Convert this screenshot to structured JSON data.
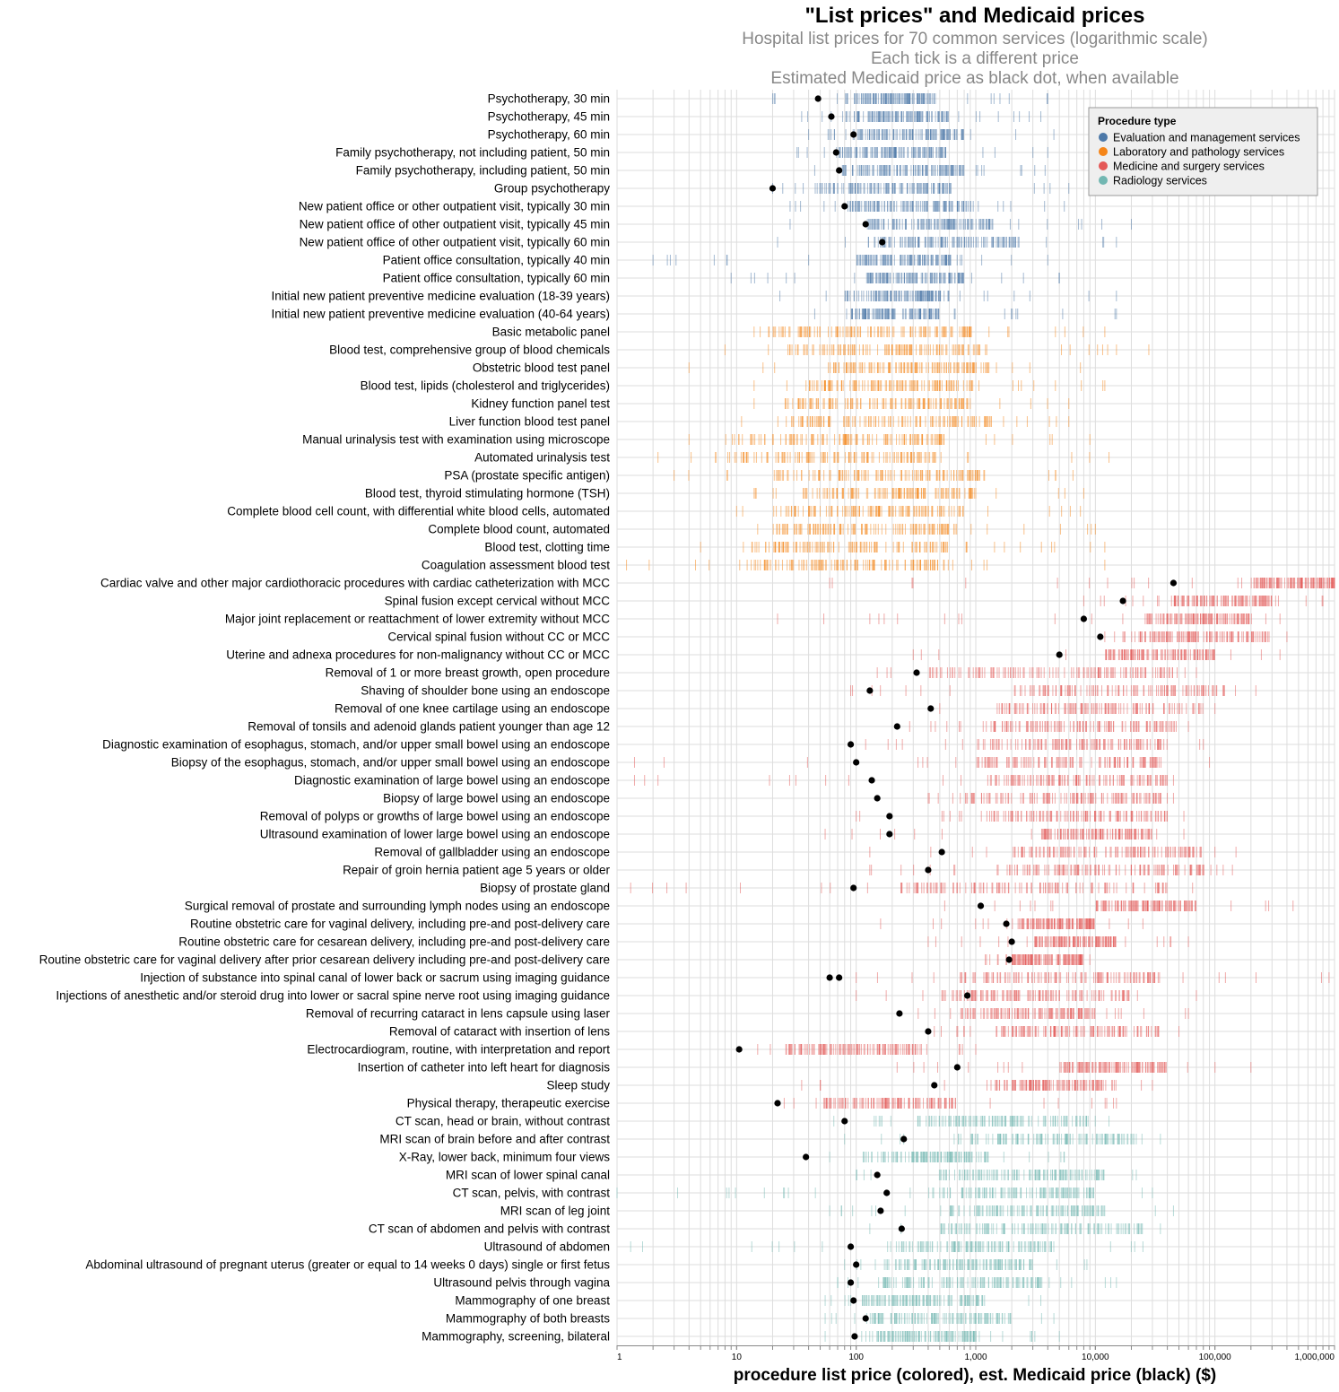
{
  "chart_data": {
    "type": "strip",
    "title": "\"List prices\" and Medicaid prices",
    "subtitles": [
      "Hospital list prices for 70 common services (logarithmic scale)",
      "Each tick is a different price",
      "Estimated Medicaid price as black dot, when available"
    ],
    "xlabel": "procedure list price (colored), est. Medicaid price (black) ($)",
    "x_scale": "log",
    "xlim": [
      1,
      1000000
    ],
    "x_ticks": [
      "1",
      "10",
      "100",
      "1,000",
      "10,000",
      "100,000",
      "1,000,000"
    ],
    "grid": true,
    "legend": {
      "title": "Procedure type",
      "placement": "top-right",
      "items": [
        {
          "label": "Evaluation and management services",
          "color": "#4c78a8"
        },
        {
          "label": "Laboratory and pathology services",
          "color": "#f58518"
        },
        {
          "label": "Medicine and surgery services",
          "color": "#e45756"
        },
        {
          "label": "Radiology services",
          "color": "#72b7b2"
        }
      ]
    },
    "medicaid_color": "#000000",
    "rows": [
      {
        "name": "Psychotherapy, 30 min",
        "type": 0,
        "min": 20,
        "dense": [
          80,
          450
        ],
        "max": 4000,
        "medicaid": [
          48
        ]
      },
      {
        "name": "Psychotherapy, 45 min",
        "type": 0,
        "min": 35,
        "dense": [
          75,
          600
        ],
        "max": 3500,
        "medicaid": [
          62
        ]
      },
      {
        "name": "Psychotherapy, 60 min",
        "type": 0,
        "min": 40,
        "dense": [
          95,
          800
        ],
        "max": 4500,
        "medicaid": [
          95
        ]
      },
      {
        "name": "Family psychotherapy, not including patient, 50 min",
        "type": 0,
        "min": 32,
        "dense": [
          70,
          600
        ],
        "max": 4000,
        "medicaid": [
          68
        ]
      },
      {
        "name": "Family psychotherapy, including patient, 50 min",
        "type": 0,
        "min": 45,
        "dense": [
          75,
          800
        ],
        "max": 3800,
        "medicaid": [
          72
        ]
      },
      {
        "name": "Group psychotherapy",
        "type": 0,
        "min": 20,
        "dense": [
          45,
          650
        ],
        "max": 6000,
        "medicaid": [
          20
        ]
      },
      {
        "name": "New patient office or other outpatient visit, typically 30 min",
        "type": 0,
        "min": 28,
        "dense": [
          85,
          1000
        ],
        "max": 5500,
        "medicaid": [
          80
        ]
      },
      {
        "name": "New patient office of other outpatient visit, typically 45 min",
        "type": 0,
        "min": 28,
        "dense": [
          120,
          1400
        ],
        "max": 20000,
        "medicaid": [
          120
        ]
      },
      {
        "name": "New patient office of other outpatient visit, typically 60 min",
        "type": 0,
        "min": 22,
        "dense": [
          125,
          2500
        ],
        "max": 15000,
        "medicaid": [
          165
        ]
      },
      {
        "name": "Patient office consultation, typically 40 min",
        "type": 0,
        "min": 2,
        "dense": [
          100,
          650
        ],
        "max": 4000,
        "medicaid": []
      },
      {
        "name": "Patient office consultation, typically 60 min",
        "type": 0,
        "min": 9,
        "dense": [
          120,
          800
        ],
        "max": 5000,
        "medicaid": []
      },
      {
        "name": "Initial new patient preventive medicine evaluation (18-39 years)",
        "type": 0,
        "min": 23,
        "dense": [
          80,
          600
        ],
        "max": 15000,
        "medicaid": []
      },
      {
        "name": "Initial new patient preventive medicine evaluation (40-64 years)",
        "type": 0,
        "min": 45,
        "dense": [
          90,
          500
        ],
        "max": 15000,
        "medicaid": []
      },
      {
        "name": "Basic metabolic panel",
        "type": 1,
        "min": 14,
        "dense": [
          20,
          1000
        ],
        "max": 12000,
        "medicaid": []
      },
      {
        "name": "Blood test, comprehensive group of blood chemicals",
        "type": 1,
        "min": 8,
        "dense": [
          25,
          1300
        ],
        "max": 28000,
        "medicaid": []
      },
      {
        "name": "Obstetric blood test panel",
        "type": 1,
        "min": 4,
        "dense": [
          60,
          1300
        ],
        "max": 7500,
        "medicaid": []
      },
      {
        "name": "Blood test, lipids (cholesterol and triglycerides)",
        "type": 1,
        "min": 14,
        "dense": [
          38,
          950
        ],
        "max": 12000,
        "medicaid": []
      },
      {
        "name": "Kidney function panel test",
        "type": 1,
        "min": 14,
        "dense": [
          25,
          900
        ],
        "max": 6000,
        "medicaid": []
      },
      {
        "name": "Liver function blood test panel",
        "type": 1,
        "min": 11,
        "dense": [
          28,
          1400
        ],
        "max": 6000,
        "medicaid": []
      },
      {
        "name": "Manual urinalysis test with examination using microscope",
        "type": 1,
        "min": 4,
        "dense": [
          9,
          550
        ],
        "max": 9000,
        "medicaid": []
      },
      {
        "name": "Automated urinalysis test",
        "type": 1,
        "min": 2.2,
        "dense": [
          7,
          500
        ],
        "max": 13000,
        "medicaid": []
      },
      {
        "name": "PSA (prostate specific antigen)",
        "type": 1,
        "min": 3,
        "dense": [
          20,
          1200
        ],
        "max": 6500,
        "medicaid": []
      },
      {
        "name": "Blood test, thyroid stimulating hormone (TSH)",
        "type": 1,
        "min": 14,
        "dense": [
          35,
          1000
        ],
        "max": 8000,
        "medicaid": []
      },
      {
        "name": "Complete blood cell count, with differential white blood cells, automated",
        "type": 1,
        "min": 10,
        "dense": [
          20,
          800
        ],
        "max": 7500,
        "medicaid": []
      },
      {
        "name": "Complete blood count, automated",
        "type": 1,
        "min": 15,
        "dense": [
          20,
          700
        ],
        "max": 10000,
        "medicaid": []
      },
      {
        "name": "Blood test, clotting time",
        "type": 1,
        "min": 5,
        "dense": [
          11,
          650
        ],
        "max": 12000,
        "medicaid": []
      },
      {
        "name": "Coagulation assessment blood test",
        "type": 1,
        "min": 1.2,
        "dense": [
          12,
          550
        ],
        "max": 12000,
        "medicaid": []
      },
      {
        "name": "Cardiac valve and other major cardiothoracic procedures with cardiac catheterization with MCC",
        "type": 2,
        "min": 60,
        "dense": [
          200000,
          1000000
        ],
        "max": 1000000,
        "medicaid": [
          45000
        ]
      },
      {
        "name": "Spinal fusion except cervical without MCC",
        "type": 2,
        "min": 8000,
        "dense": [
          40000,
          300000
        ],
        "max": 800000,
        "medicaid": [
          17000
        ]
      },
      {
        "name": "Major joint replacement or reattachment of lower extremity without MCC",
        "type": 2,
        "min": 22,
        "dense": [
          25000,
          200000
        ],
        "max": 350000,
        "medicaid": [
          8000
        ]
      },
      {
        "name": "Cervical spinal fusion without CC or MCC",
        "type": 2,
        "min": 12000,
        "dense": [
          20000,
          300000
        ],
        "max": 400000,
        "medicaid": [
          11000
        ]
      },
      {
        "name": "Uterine and adnexa procedures for non-malignancy without CC or MCC",
        "type": 2,
        "min": 300,
        "dense": [
          12000,
          100000
        ],
        "max": 350000,
        "medicaid": [
          5000
        ]
      },
      {
        "name": "Removal of 1 or more breast growth, open procedure",
        "type": 2,
        "min": 150,
        "dense": [
          400,
          50000
        ],
        "max": 70000,
        "medicaid": [
          320
        ]
      },
      {
        "name": "Shaving of shoulder bone using an endoscope",
        "type": 2,
        "min": 90,
        "dense": [
          2000,
          120000
        ],
        "max": 220000,
        "medicaid": [
          130
        ]
      },
      {
        "name": "Removal of one knee cartilage using an endoscope",
        "type": 2,
        "min": 500,
        "dense": [
          1500,
          80000
        ],
        "max": 100000,
        "medicaid": [
          420
        ]
      },
      {
        "name": "Removal of tonsils and adenoid glands patient younger than age 12",
        "type": 2,
        "min": 280,
        "dense": [
          1200,
          50000
        ],
        "max": 60000,
        "medicaid": [
          220
        ]
      },
      {
        "name": "Diagnostic examination of esophagus, stomach, and/or upper small bowel using an endoscope",
        "type": 2,
        "min": 120,
        "dense": [
          1000,
          40000
        ],
        "max": 80000,
        "medicaid": [
          90
        ]
      },
      {
        "name": "Biopsy of the esophagus, stomach, and/or upper small bowel using an endoscope",
        "type": 2,
        "min": 1.4,
        "dense": [
          1000,
          40000
        ],
        "max": 90000,
        "medicaid": [
          100
        ]
      },
      {
        "name": "Diagnostic examination of large bowel using an endoscope",
        "type": 2,
        "min": 1.4,
        "dense": [
          1300,
          40000
        ],
        "max": 45000,
        "medicaid": [
          135
        ]
      },
      {
        "name": "Biopsy of large bowel using an endoscope",
        "type": 2,
        "min": 400,
        "dense": [
          700,
          40000
        ],
        "max": 45000,
        "medicaid": [
          150
        ]
      },
      {
        "name": "Removal of polyps or growths of large bowel using an endoscope",
        "type": 2,
        "min": 100,
        "dense": [
          1200,
          40000
        ],
        "max": 55000,
        "medicaid": [
          190
        ]
      },
      {
        "name": "Ultrasound examination of lower large bowel using an endoscope",
        "type": 2,
        "min": 55,
        "dense": [
          3500,
          30000
        ],
        "max": 55000,
        "medicaid": [
          190
        ]
      },
      {
        "name": "Removal of gallbladder using an endoscope",
        "type": 2,
        "min": 130,
        "dense": [
          2000,
          80000
        ],
        "max": 150000,
        "medicaid": [
          520
        ]
      },
      {
        "name": "Repair of groin hernia patient age 5 years or older",
        "type": 2,
        "min": 130,
        "dense": [
          1500,
          80000
        ],
        "max": 140000,
        "medicaid": [
          400
        ]
      },
      {
        "name": "Biopsy of prostate gland",
        "type": 2,
        "min": 1.3,
        "dense": [
          230,
          40000
        ],
        "max": 65000,
        "medicaid": [
          95
        ]
      },
      {
        "name": "Surgical removal of prostate and surrounding lymph nodes using an endoscope",
        "type": 2,
        "min": 550,
        "dense": [
          10000,
          70000
        ],
        "max": 450000,
        "medicaid": [
          1100
        ]
      },
      {
        "name": "Routine obstetric care for vaginal delivery, including pre-and post-delivery care",
        "type": 2,
        "min": 160,
        "dense": [
          2000,
          10000
        ],
        "max": 25000,
        "medicaid": [
          1800
        ]
      },
      {
        "name": "Routine obstetric care for cesarean delivery, including pre-and post-delivery care",
        "type": 2,
        "min": 400,
        "dense": [
          3000,
          15000
        ],
        "max": 60000,
        "medicaid": [
          2000
        ]
      },
      {
        "name": "Routine obstetric care for vaginal delivery after prior cesarean delivery including pre-and post-delivery care",
        "type": 2,
        "min": 1200,
        "dense": [
          2000,
          8000
        ],
        "max": 9000,
        "medicaid": [
          1900
        ]
      },
      {
        "name": "Injection of substance into spinal canal of lower back or sacrum using imaging guidance",
        "type": 2,
        "min": 100,
        "dense": [
          700,
          35000
        ],
        "max": 900000,
        "medicaid": [
          60,
          72
        ]
      },
      {
        "name": "Injections of anesthetic and/or steroid drug into lower or sacral spine nerve root using imaging guidance",
        "type": 2,
        "min": 100,
        "dense": [
          500,
          20000
        ],
        "max": 70000,
        "medicaid": [
          850
        ]
      },
      {
        "name": "Removal of recurring cataract in lens capsule using laser",
        "type": 2,
        "min": 330,
        "dense": [
          700,
          10000
        ],
        "max": 60000,
        "medicaid": [
          230
        ]
      },
      {
        "name": "Removal of cataract with insertion of lens",
        "type": 2,
        "min": 450,
        "dense": [
          1500,
          35000
        ],
        "max": 50000,
        "medicaid": [
          400
        ]
      },
      {
        "name": "Electrocardiogram, routine, with interpretation and report",
        "type": 2,
        "min": 15,
        "dense": [
          25,
          400
        ],
        "max": 1000,
        "medicaid": [
          10.5
        ]
      },
      {
        "name": "Insertion of catheter into left heart for diagnosis",
        "type": 2,
        "min": 220,
        "dense": [
          5000,
          40000
        ],
        "max": 200000,
        "medicaid": [
          700
        ]
      },
      {
        "name": "Sleep study",
        "type": 2,
        "min": 35,
        "dense": [
          1400,
          15000
        ],
        "max": 30000,
        "medicaid": [
          450
        ]
      },
      {
        "name": "Physical therapy, therapeutic exercise",
        "type": 2,
        "min": 25,
        "dense": [
          50,
          700
        ],
        "max": 15000,
        "medicaid": [
          22
        ]
      },
      {
        "name": "CT scan, head or brain, without contrast",
        "type": 3,
        "min": 65,
        "dense": [
          300,
          9000
        ],
        "max": 13000,
        "medicaid": [
          80
        ]
      },
      {
        "name": "MRI scan of brain before and after contrast",
        "type": 3,
        "min": 80,
        "dense": [
          700,
          22000
        ],
        "max": 35000,
        "medicaid": [
          250
        ]
      },
      {
        "name": "X-Ray, lower back, minimum four views",
        "type": 3,
        "min": 60,
        "dense": [
          110,
          1400
        ],
        "max": 5500,
        "medicaid": [
          38
        ]
      },
      {
        "name": "MRI scan of lower spinal canal",
        "type": 3,
        "min": 100,
        "dense": [
          450,
          12000
        ],
        "max": 22000,
        "medicaid": [
          150
        ]
      },
      {
        "name": "CT scan, pelvis, with contrast",
        "type": 3,
        "min": 1.0,
        "dense": [
          400,
          10000
        ],
        "max": 30000,
        "medicaid": [
          180
        ]
      },
      {
        "name": "MRI scan of leg joint",
        "type": 3,
        "min": 60,
        "dense": [
          500,
          12000
        ],
        "max": 45000,
        "medicaid": [
          160
        ]
      },
      {
        "name": "CT scan of abdomen and pelvis with contrast",
        "type": 3,
        "min": 130,
        "dense": [
          500,
          25000
        ],
        "max": 35000,
        "medicaid": [
          240
        ]
      },
      {
        "name": "Ultrasound of abdomen",
        "type": 3,
        "min": 1.3,
        "dense": [
          200,
          4500
        ],
        "max": 25000,
        "medicaid": [
          90
        ]
      },
      {
        "name": "Abdominal ultrasound of pregnant uterus (greater or equal to 14 weeks 0 days) single or first fetus",
        "type": 3,
        "min": 80,
        "dense": [
          170,
          3000
        ],
        "max": 8500,
        "medicaid": [
          100
        ]
      },
      {
        "name": "Ultrasound pelvis through vagina",
        "type": 3,
        "min": 70,
        "dense": [
          160,
          3500
        ],
        "max": 15000,
        "medicaid": [
          90
        ]
      },
      {
        "name": "Mammography of one breast",
        "type": 3,
        "min": 55,
        "dense": [
          110,
          1200
        ],
        "max": 3500,
        "medicaid": [
          95
        ]
      },
      {
        "name": "Mammography of both breasts",
        "type": 3,
        "min": 55,
        "dense": [
          130,
          2000
        ],
        "max": 4500,
        "medicaid": [
          120
        ]
      },
      {
        "name": "Mammography, screening, bilateral",
        "type": 3,
        "min": 55,
        "dense": [
          120,
          1000
        ],
        "max": 5000,
        "medicaid": [
          97
        ]
      }
    ]
  }
}
